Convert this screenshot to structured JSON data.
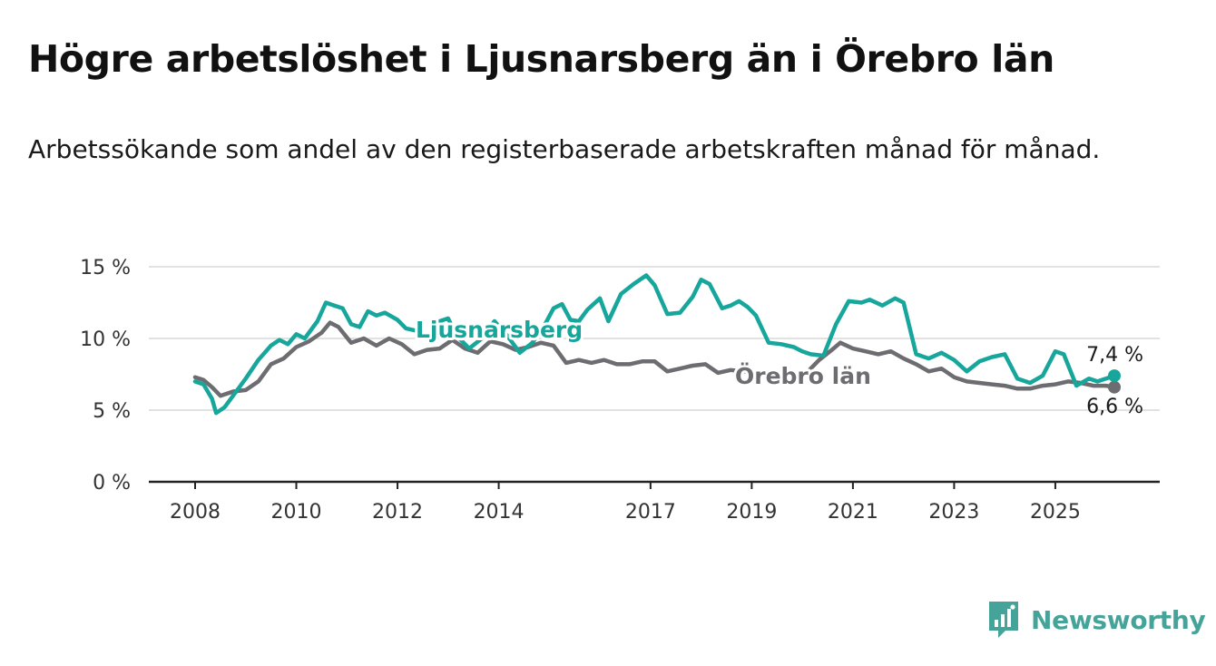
{
  "header": {
    "title": "Högre arbetslöshet i Ljusnarsberg än i Örebro län",
    "subtitle": "Arbetssökande som andel av den registerbaserade arbetskraften månad för månad."
  },
  "chart_data": {
    "type": "line",
    "x_axis": {
      "type": "time",
      "range": [
        "2008-01",
        "2026-03"
      ],
      "tick_labels": [
        "2008",
        "2010",
        "2012",
        "2014",
        "2017",
        "2019",
        "2021",
        "2023",
        "2025"
      ]
    },
    "y_axis": {
      "range": [
        0,
        15
      ],
      "ticks": [
        0,
        5,
        10,
        15
      ],
      "tick_labels": [
        "0 %",
        "5 %",
        "10 %",
        "15 %"
      ]
    },
    "grid": true,
    "series": [
      {
        "name": "Ljusnarsberg",
        "color": "#16a69b",
        "end_label": "7,4 %",
        "points": [
          [
            "2008-01",
            7.0
          ],
          [
            "2008-03",
            6.8
          ],
          [
            "2008-05",
            5.8
          ],
          [
            "2008-06",
            4.8
          ],
          [
            "2008-08",
            5.2
          ],
          [
            "2008-10",
            6.0
          ],
          [
            "2009-01",
            7.2
          ],
          [
            "2009-04",
            8.5
          ],
          [
            "2009-07",
            9.5
          ],
          [
            "2009-09",
            9.9
          ],
          [
            "2009-11",
            9.6
          ],
          [
            "2010-01",
            10.3
          ],
          [
            "2010-03",
            10.0
          ],
          [
            "2010-06",
            11.2
          ],
          [
            "2010-08",
            12.5
          ],
          [
            "2010-10",
            12.3
          ],
          [
            "2010-12",
            12.1
          ],
          [
            "2011-02",
            11.0
          ],
          [
            "2011-04",
            10.8
          ],
          [
            "2011-06",
            11.9
          ],
          [
            "2011-08",
            11.6
          ],
          [
            "2011-10",
            11.8
          ],
          [
            "2012-01",
            11.3
          ],
          [
            "2012-03",
            10.7
          ],
          [
            "2012-06",
            10.5
          ],
          [
            "2012-08",
            10.0
          ],
          [
            "2012-11",
            11.2
          ],
          [
            "2013-01",
            11.4
          ],
          [
            "2013-03",
            10.2
          ],
          [
            "2013-06",
            9.3
          ],
          [
            "2013-09",
            10.0
          ],
          [
            "2013-12",
            11.2
          ],
          [
            "2014-03",
            10.2
          ],
          [
            "2014-06",
            9.0
          ],
          [
            "2014-09",
            9.7
          ],
          [
            "2014-12",
            11.0
          ],
          [
            "2015-02",
            12.1
          ],
          [
            "2015-04",
            12.4
          ],
          [
            "2015-06",
            11.3
          ],
          [
            "2015-08",
            11.2
          ],
          [
            "2015-10",
            12.0
          ],
          [
            "2016-01",
            12.8
          ],
          [
            "2016-03",
            11.2
          ],
          [
            "2016-06",
            13.1
          ],
          [
            "2016-09",
            13.8
          ],
          [
            "2016-12",
            14.4
          ],
          [
            "2017-02",
            13.7
          ],
          [
            "2017-05",
            11.7
          ],
          [
            "2017-08",
            11.8
          ],
          [
            "2017-11",
            12.9
          ],
          [
            "2018-01",
            14.1
          ],
          [
            "2018-03",
            13.8
          ],
          [
            "2018-06",
            12.1
          ],
          [
            "2018-08",
            12.3
          ],
          [
            "2018-10",
            12.6
          ],
          [
            "2018-12",
            12.2
          ],
          [
            "2019-02",
            11.6
          ],
          [
            "2019-05",
            9.7
          ],
          [
            "2019-08",
            9.6
          ],
          [
            "2019-11",
            9.4
          ],
          [
            "2020-01",
            9.1
          ],
          [
            "2020-03",
            8.9
          ],
          [
            "2020-06",
            8.8
          ],
          [
            "2020-09",
            11.0
          ],
          [
            "2020-12",
            12.6
          ],
          [
            "2021-03",
            12.5
          ],
          [
            "2021-05",
            12.7
          ],
          [
            "2021-08",
            12.3
          ],
          [
            "2021-11",
            12.8
          ],
          [
            "2022-01",
            12.5
          ],
          [
            "2022-04",
            8.9
          ],
          [
            "2022-07",
            8.6
          ],
          [
            "2022-10",
            9.0
          ],
          [
            "2023-01",
            8.5
          ],
          [
            "2023-04",
            7.7
          ],
          [
            "2023-07",
            8.4
          ],
          [
            "2023-10",
            8.7
          ],
          [
            "2024-01",
            8.9
          ],
          [
            "2024-04",
            7.2
          ],
          [
            "2024-07",
            6.9
          ],
          [
            "2024-10",
            7.4
          ],
          [
            "2025-01",
            9.1
          ],
          [
            "2025-03",
            8.9
          ],
          [
            "2025-06",
            6.7
          ],
          [
            "2025-09",
            7.2
          ],
          [
            "2025-11",
            7.0
          ],
          [
            "2026-01",
            7.2
          ],
          [
            "2026-03",
            7.4
          ]
        ]
      },
      {
        "name": "Örebro län",
        "color": "#6d6d71",
        "end_label": "6,6 %",
        "points": [
          [
            "2008-01",
            7.3
          ],
          [
            "2008-03",
            7.1
          ],
          [
            "2008-05",
            6.6
          ],
          [
            "2008-07",
            6.0
          ],
          [
            "2008-10",
            6.3
          ],
          [
            "2009-01",
            6.4
          ],
          [
            "2009-04",
            7.0
          ],
          [
            "2009-07",
            8.2
          ],
          [
            "2009-10",
            8.6
          ],
          [
            "2010-01",
            9.4
          ],
          [
            "2010-04",
            9.8
          ],
          [
            "2010-07",
            10.4
          ],
          [
            "2010-09",
            11.1
          ],
          [
            "2010-11",
            10.8
          ],
          [
            "2011-02",
            9.7
          ],
          [
            "2011-05",
            10.0
          ],
          [
            "2011-08",
            9.5
          ],
          [
            "2011-11",
            10.0
          ],
          [
            "2012-02",
            9.6
          ],
          [
            "2012-05",
            8.9
          ],
          [
            "2012-08",
            9.2
          ],
          [
            "2012-11",
            9.3
          ],
          [
            "2013-02",
            9.9
          ],
          [
            "2013-05",
            9.3
          ],
          [
            "2013-08",
            9.0
          ],
          [
            "2013-11",
            9.8
          ],
          [
            "2014-02",
            9.6
          ],
          [
            "2014-05",
            9.2
          ],
          [
            "2014-08",
            9.4
          ],
          [
            "2014-11",
            9.7
          ],
          [
            "2015-02",
            9.5
          ],
          [
            "2015-05",
            8.3
          ],
          [
            "2015-08",
            8.5
          ],
          [
            "2015-11",
            8.3
          ],
          [
            "2016-02",
            8.5
          ],
          [
            "2016-05",
            8.2
          ],
          [
            "2016-08",
            8.2
          ],
          [
            "2016-11",
            8.4
          ],
          [
            "2017-02",
            8.4
          ],
          [
            "2017-05",
            7.7
          ],
          [
            "2017-08",
            7.9
          ],
          [
            "2017-11",
            8.1
          ],
          [
            "2018-02",
            8.2
          ],
          [
            "2018-05",
            7.6
          ],
          [
            "2018-08",
            7.8
          ],
          [
            "2018-11",
            7.7
          ],
          [
            "2019-02",
            7.6
          ],
          [
            "2019-05",
            7.5
          ],
          [
            "2019-08",
            7.6
          ],
          [
            "2019-11",
            7.4
          ],
          [
            "2020-02",
            7.6
          ],
          [
            "2020-05",
            8.5
          ],
          [
            "2020-08",
            9.2
          ],
          [
            "2020-10",
            9.7
          ],
          [
            "2021-01",
            9.3
          ],
          [
            "2021-04",
            9.1
          ],
          [
            "2021-07",
            8.9
          ],
          [
            "2021-10",
            9.1
          ],
          [
            "2022-01",
            8.6
          ],
          [
            "2022-04",
            8.2
          ],
          [
            "2022-07",
            7.7
          ],
          [
            "2022-10",
            7.9
          ],
          [
            "2023-01",
            7.3
          ],
          [
            "2023-04",
            7.0
          ],
          [
            "2023-07",
            6.9
          ],
          [
            "2023-10",
            6.8
          ],
          [
            "2024-01",
            6.7
          ],
          [
            "2024-04",
            6.5
          ],
          [
            "2024-07",
            6.5
          ],
          [
            "2024-10",
            6.7
          ],
          [
            "2025-01",
            6.8
          ],
          [
            "2025-04",
            7.0
          ],
          [
            "2025-07",
            6.9
          ],
          [
            "2025-10",
            6.7
          ],
          [
            "2026-01",
            6.7
          ],
          [
            "2026-03",
            6.6
          ]
        ]
      }
    ]
  },
  "branding": {
    "name": "Newsworthy",
    "color": "#46a39a"
  }
}
